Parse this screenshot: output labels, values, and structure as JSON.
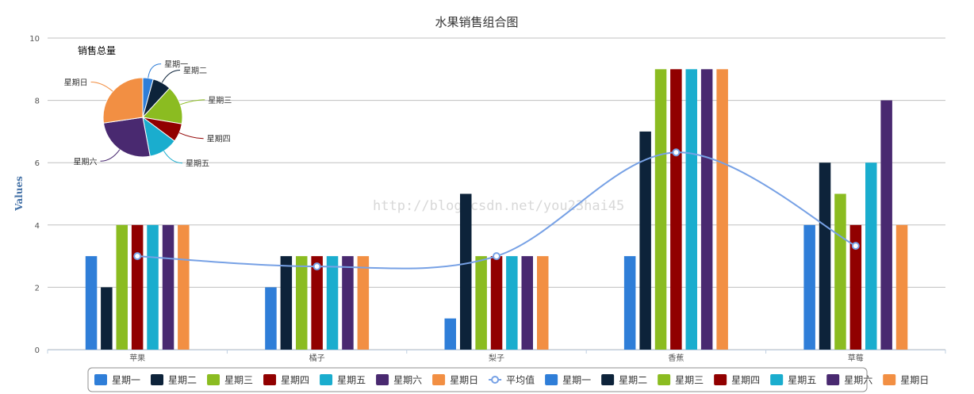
{
  "chart_data": {
    "type": "bar",
    "title": "水果销售组合图",
    "ylabel": "Values",
    "xlabel": "",
    "ylim": [
      0,
      10
    ],
    "yticks": [
      0,
      2,
      4,
      6,
      8,
      10
    ],
    "grid": true,
    "categories": [
      "苹果",
      "橘子",
      "梨子",
      "香蕉",
      "草莓"
    ],
    "series": [
      {
        "name": "星期一",
        "color": "#2f7ed8",
        "values": [
          3,
          2,
          1,
          3,
          4
        ]
      },
      {
        "name": "星期二",
        "color": "#0d233a",
        "values": [
          2,
          3,
          5,
          7,
          6
        ]
      },
      {
        "name": "星期三",
        "color": "#8bbc21",
        "values": [
          4,
          3,
          3,
          9,
          5
        ]
      },
      {
        "name": "星期四",
        "color": "#910000",
        "values": [
          4,
          3,
          3,
          9,
          4
        ]
      },
      {
        "name": "星期五",
        "color": "#1aadce",
        "values": [
          4,
          3,
          3,
          9,
          6
        ]
      },
      {
        "name": "星期六",
        "color": "#492970",
        "values": [
          4,
          3,
          3,
          9,
          8
        ]
      },
      {
        "name": "星期日",
        "color": "#f28f43",
        "values": [
          4,
          3,
          3,
          9,
          4
        ]
      }
    ],
    "average_line": {
      "name": "平均值",
      "color": "#77a1e5",
      "values": [
        3.0,
        2.67,
        3.0,
        6.33,
        3.33
      ]
    },
    "pie": {
      "title": "销售总量",
      "slices": [
        {
          "name": "星期一",
          "color": "#2f7ed8",
          "value": 13
        },
        {
          "name": "星期二",
          "color": "#0d233a",
          "value": 23
        },
        {
          "name": "星期三",
          "color": "#8bbc21",
          "value": 48
        },
        {
          "name": "星期四",
          "color": "#910000",
          "value": 23
        },
        {
          "name": "星期五",
          "color": "#1aadce",
          "value": 36
        },
        {
          "name": "星期六",
          "color": "#492970",
          "value": 78
        },
        {
          "name": "星期日",
          "color": "#f28f43",
          "value": 83
        }
      ]
    },
    "legend": {
      "placement": "bottom",
      "items": [
        {
          "name": "星期一",
          "color": "#2f7ed8",
          "kind": "bar"
        },
        {
          "name": "星期二",
          "color": "#0d233a",
          "kind": "bar"
        },
        {
          "name": "星期三",
          "color": "#8bbc21",
          "kind": "bar"
        },
        {
          "name": "星期四",
          "color": "#910000",
          "kind": "bar"
        },
        {
          "name": "星期五",
          "color": "#1aadce",
          "kind": "bar"
        },
        {
          "name": "星期六",
          "color": "#492970",
          "kind": "bar"
        },
        {
          "name": "星期日",
          "color": "#f28f43",
          "kind": "bar"
        },
        {
          "name": "平均值",
          "color": "#77a1e5",
          "kind": "line"
        },
        {
          "name": "星期一",
          "color": "#2f7ed8",
          "kind": "bar"
        },
        {
          "name": "星期二",
          "color": "#0d233a",
          "kind": "bar"
        },
        {
          "name": "星期三",
          "color": "#8bbc21",
          "kind": "bar"
        },
        {
          "name": "星期四",
          "color": "#910000",
          "kind": "bar"
        },
        {
          "name": "星期五",
          "color": "#1aadce",
          "kind": "bar"
        },
        {
          "name": "星期六",
          "color": "#492970",
          "kind": "bar"
        },
        {
          "name": "星期日",
          "color": "#f28f43",
          "kind": "bar"
        }
      ]
    },
    "watermark": "http://blog.csdn.net/you23hai45"
  }
}
